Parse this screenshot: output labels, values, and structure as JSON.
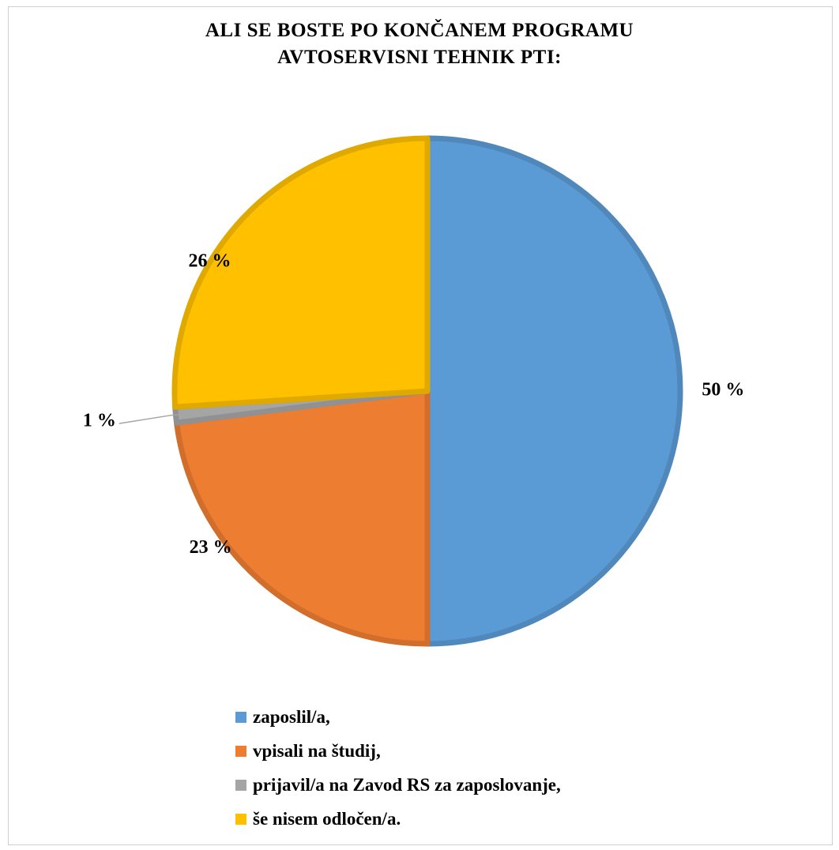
{
  "chart_data": {
    "type": "pie",
    "title": [
      "ALI SE BOSTE PO KONČANEM PROGRAMU",
      "AVTOSERVISNI TEHNIK PTI:"
    ],
    "categories": [
      "zaposlil/a,",
      "vpisali na študij,",
      "prijavil/a na Zavod RS za zaposlovanje,",
      "še nisem odločen/a."
    ],
    "values": [
      50,
      23,
      1,
      26
    ],
    "data_labels": [
      "50 %",
      "23 %",
      "1 %",
      "26 %"
    ],
    "colors": [
      "#5B9BD5",
      "#ED7D31",
      "#A5A5A5",
      "#FFC000"
    ],
    "legend_position": "bottom"
  }
}
